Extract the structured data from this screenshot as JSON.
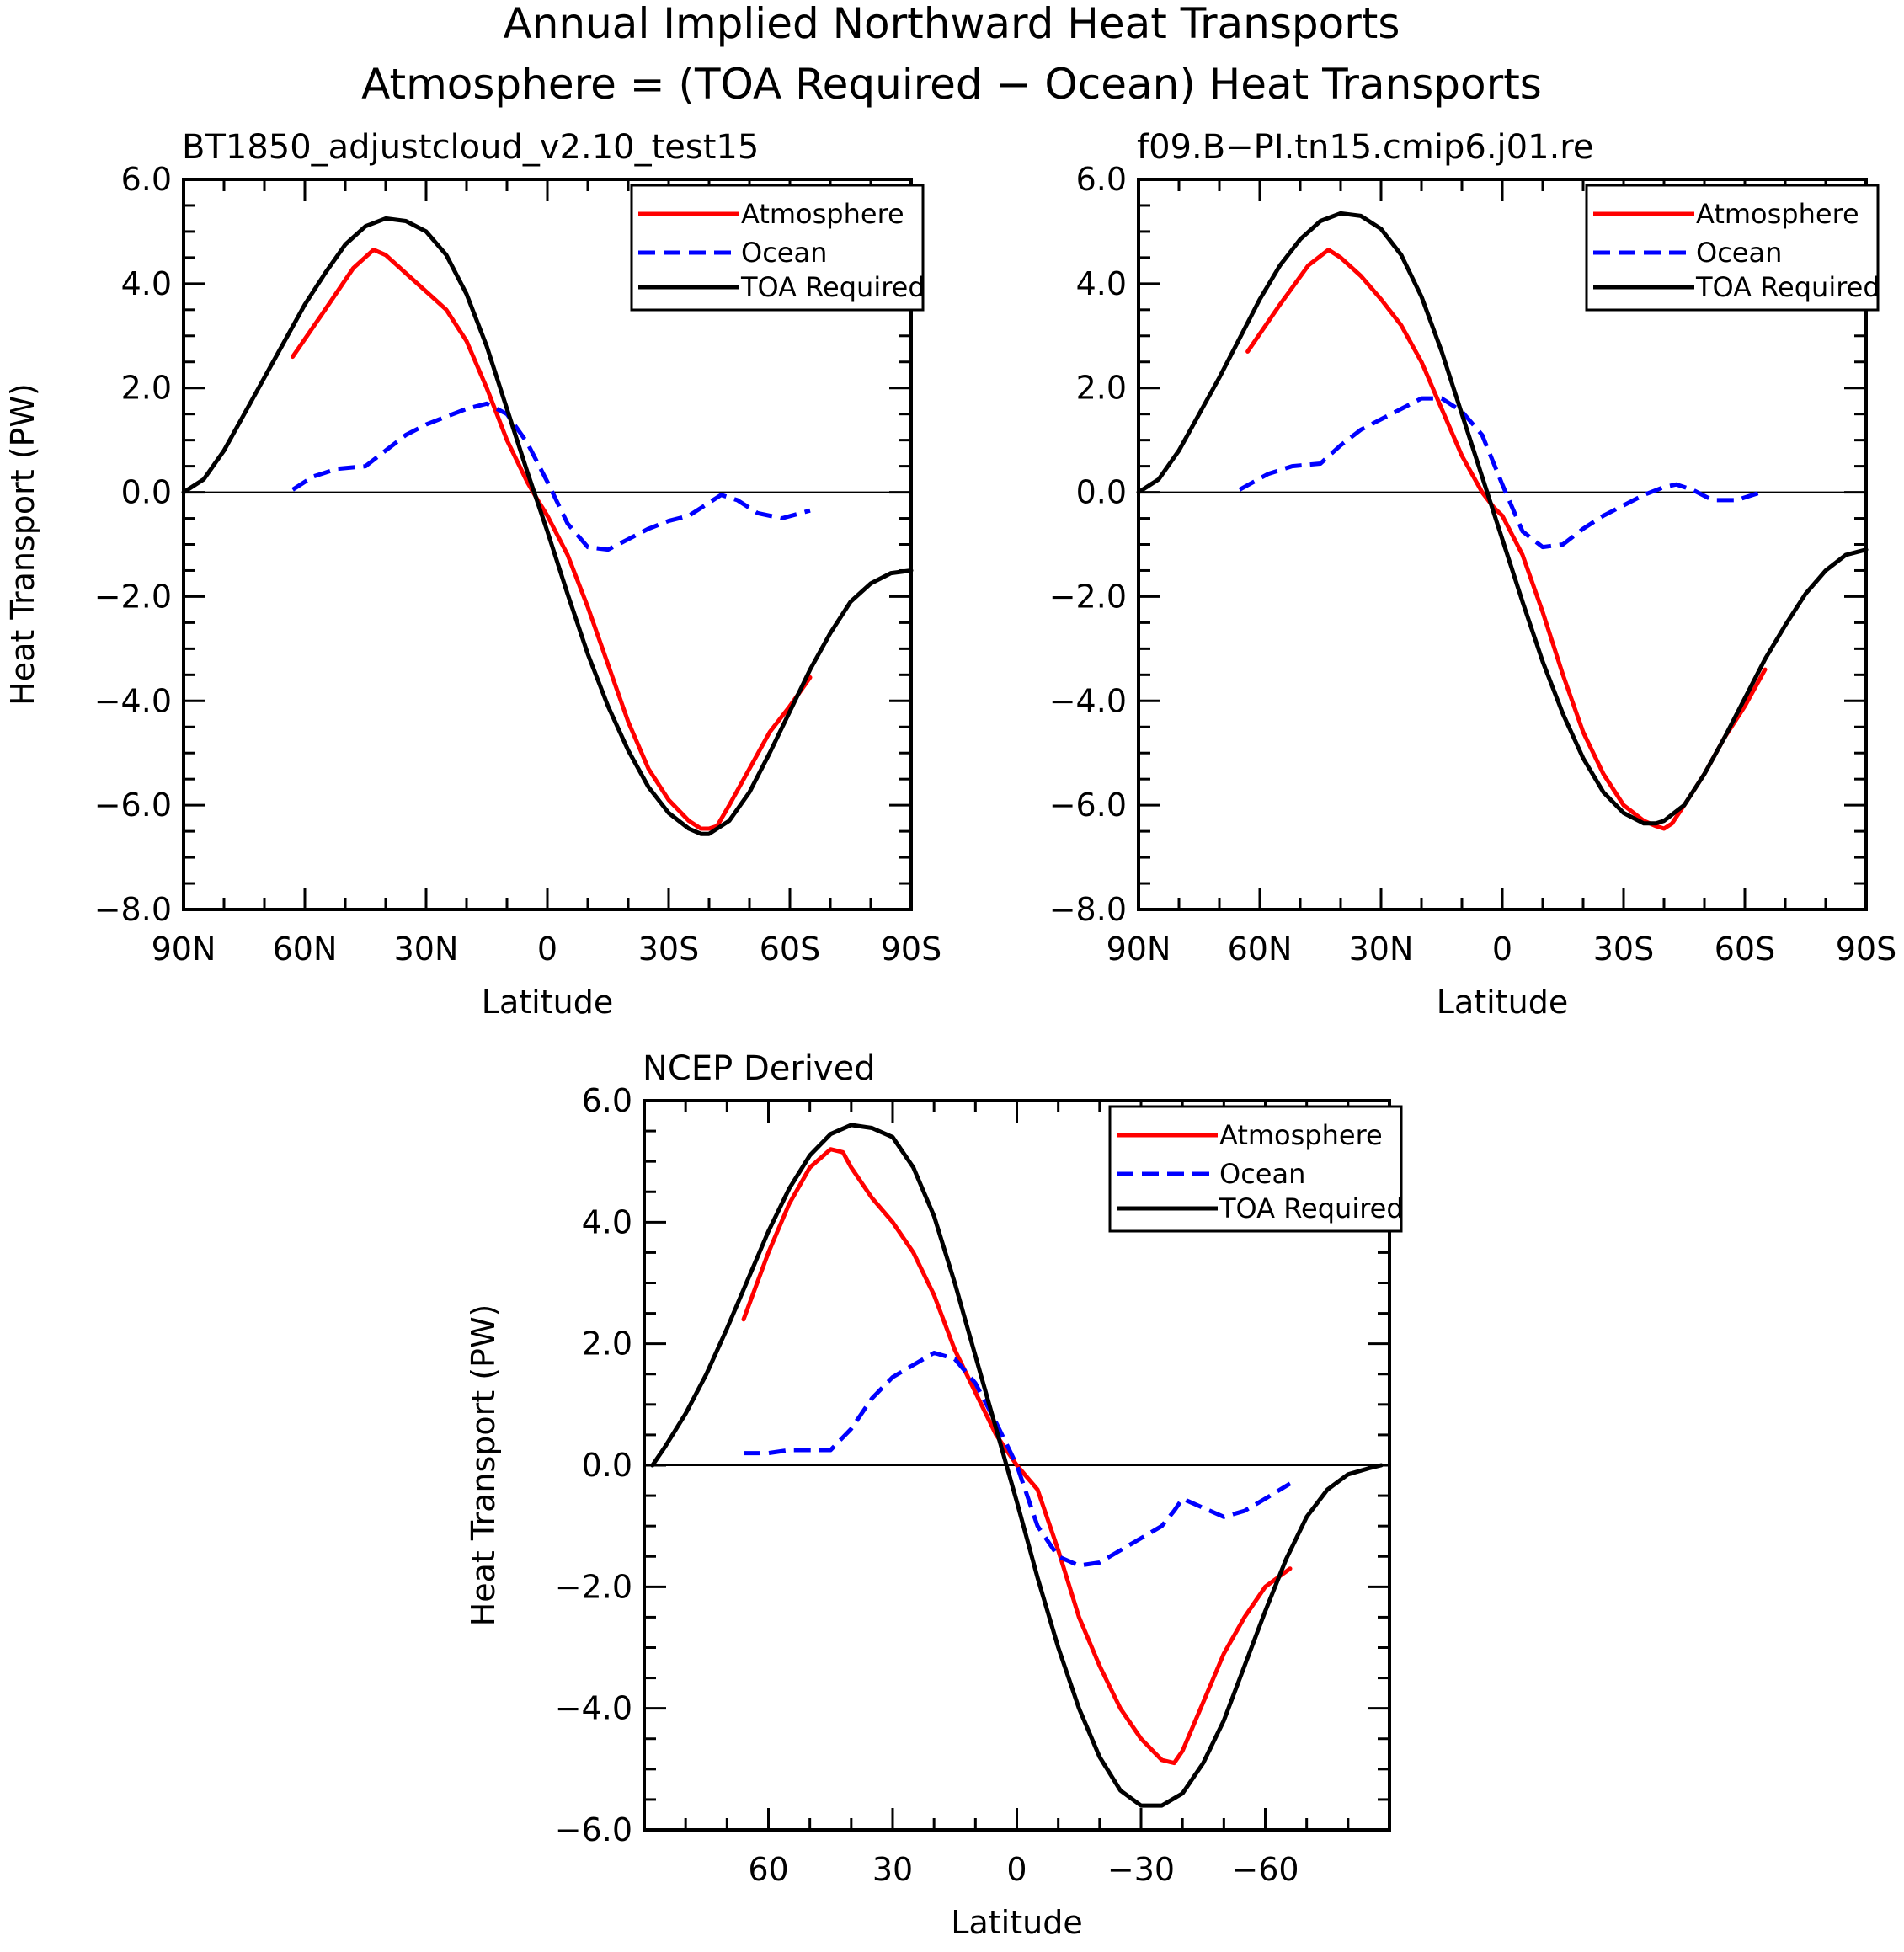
{
  "figure": {
    "title_line1": "Annual Implied Northward Heat Transports",
    "title_line2": "Atmosphere = (TOA Required − Ocean) Heat Transports"
  },
  "legend": {
    "atmosphere": "Atmosphere",
    "ocean": "Ocean",
    "toa": "TOA Required"
  },
  "colors": {
    "atmosphere": "#ff0000",
    "ocean": "#0000ff",
    "toa": "#000000"
  },
  "chart_data": [
    {
      "type": "line",
      "title": "BT1850_adjustcloud_v2.10_test15",
      "xlabel": "Latitude",
      "ylabel": "Heat Transport (PW)",
      "xlim": [
        90,
        -90
      ],
      "ylim": [
        -8,
        6
      ],
      "yticks": [
        6,
        4,
        2,
        0,
        -2,
        -4,
        -6,
        -8
      ],
      "ytick_labels": [
        "6.0",
        "4.0",
        "2.0",
        "0.0",
        "−2.0",
        "−4.0",
        "−6.0",
        "−8.0"
      ],
      "xticks": [
        90,
        60,
        30,
        0,
        -30,
        -60,
        -90
      ],
      "xtick_labels": [
        "90N",
        "60N",
        "30N",
        "0",
        "30S",
        "60S",
        "90S"
      ],
      "legend_position": "top-right",
      "series": [
        {
          "name": "Atmosphere",
          "key": "atmosphere",
          "style": "solid",
          "x": [
            63,
            55,
            48,
            43,
            40,
            35,
            30,
            25,
            20,
            15,
            10,
            5,
            2,
            0,
            -5,
            -10,
            -15,
            -20,
            -25,
            -30,
            -35,
            -38,
            -40,
            -42,
            -45,
            -50,
            -55,
            -60,
            -65
          ],
          "y": [
            2.6,
            3.5,
            4.3,
            4.65,
            4.55,
            4.2,
            3.85,
            3.5,
            2.9,
            2.0,
            1.0,
            0.2,
            -0.2,
            -0.45,
            -1.2,
            -2.2,
            -3.3,
            -4.4,
            -5.3,
            -5.9,
            -6.3,
            -6.45,
            -6.45,
            -6.4,
            -6.0,
            -5.3,
            -4.6,
            -4.1,
            -3.55
          ],
          "show_in_legend": true
        },
        {
          "name": "Ocean",
          "key": "ocean",
          "style": "dashed",
          "x": [
            63,
            58,
            52,
            45,
            40,
            35,
            30,
            25,
            20,
            15,
            10,
            5,
            0,
            -5,
            -10,
            -15,
            -20,
            -25,
            -30,
            -35,
            -40,
            -43,
            -47,
            -52,
            -58,
            -65
          ],
          "y": [
            0.05,
            0.3,
            0.45,
            0.5,
            0.8,
            1.1,
            1.3,
            1.45,
            1.6,
            1.7,
            1.5,
            0.95,
            0.2,
            -0.6,
            -1.05,
            -1.1,
            -0.9,
            -0.7,
            -0.55,
            -0.45,
            -0.2,
            -0.05,
            -0.15,
            -0.4,
            -0.5,
            -0.35
          ],
          "show_in_legend": true
        },
        {
          "name": "TOA Required",
          "key": "toa",
          "style": "solid",
          "x": [
            90,
            85,
            80,
            75,
            70,
            65,
            60,
            55,
            50,
            45,
            40,
            35,
            30,
            25,
            20,
            15,
            10,
            5,
            0,
            -5,
            -10,
            -15,
            -20,
            -25,
            -30,
            -35,
            -38,
            -40,
            -45,
            -50,
            -55,
            -60,
            -65,
            -70,
            -75,
            -80,
            -85,
            -90
          ],
          "y": [
            0.0,
            0.25,
            0.8,
            1.5,
            2.2,
            2.9,
            3.6,
            4.2,
            4.75,
            5.1,
            5.25,
            5.2,
            5.0,
            4.55,
            3.8,
            2.8,
            1.6,
            0.4,
            -0.75,
            -1.95,
            -3.1,
            -4.1,
            -4.95,
            -5.65,
            -6.15,
            -6.45,
            -6.55,
            -6.55,
            -6.3,
            -5.75,
            -5.0,
            -4.2,
            -3.4,
            -2.7,
            -2.1,
            -1.75,
            -1.55,
            -1.5
          ],
          "show_in_legend": true
        }
      ]
    },
    {
      "type": "line",
      "title": "f09.B−PI.tn15.cmip6.j01.re",
      "xlabel": "Latitude",
      "ylabel": "",
      "xlim": [
        90,
        -90
      ],
      "ylim": [
        -8,
        6
      ],
      "yticks": [
        6,
        4,
        2,
        0,
        -2,
        -4,
        -6,
        -8
      ],
      "ytick_labels": [
        "6.0",
        "4.0",
        "2.0",
        "0.0",
        "−2.0",
        "−4.0",
        "−6.0",
        "−8.0"
      ],
      "xticks": [
        90,
        60,
        30,
        0,
        -30,
        -60,
        -90
      ],
      "xtick_labels": [
        "90N",
        "60N",
        "30N",
        "0",
        "30S",
        "60S",
        "90S"
      ],
      "legend_position": "top-right",
      "series": [
        {
          "name": "Atmosphere",
          "key": "atmosphere",
          "style": "solid",
          "x": [
            63,
            55,
            48,
            43,
            40,
            35,
            30,
            25,
            20,
            15,
            10,
            5,
            2,
            0,
            -5,
            -10,
            -15,
            -20,
            -25,
            -30,
            -35,
            -38,
            -40,
            -42,
            -45,
            -50,
            -55,
            -60,
            -65
          ],
          "y": [
            2.7,
            3.6,
            4.35,
            4.65,
            4.5,
            4.15,
            3.7,
            3.2,
            2.5,
            1.6,
            0.7,
            0.0,
            -0.3,
            -0.45,
            -1.2,
            -2.3,
            -3.5,
            -4.6,
            -5.4,
            -6.0,
            -6.3,
            -6.4,
            -6.45,
            -6.35,
            -6.0,
            -5.4,
            -4.7,
            -4.1,
            -3.4
          ],
          "show_in_legend": true
        },
        {
          "name": "Ocean",
          "key": "ocean",
          "style": "dashed",
          "x": [
            65,
            58,
            52,
            45,
            40,
            35,
            30,
            25,
            20,
            15,
            10,
            5,
            0,
            -5,
            -10,
            -15,
            -20,
            -25,
            -30,
            -35,
            -40,
            -43,
            -47,
            -52,
            -58,
            -64
          ],
          "y": [
            0.05,
            0.35,
            0.5,
            0.55,
            0.9,
            1.2,
            1.4,
            1.6,
            1.8,
            1.8,
            1.55,
            1.1,
            0.15,
            -0.75,
            -1.05,
            -1.0,
            -0.7,
            -0.45,
            -0.25,
            -0.05,
            0.1,
            0.15,
            0.05,
            -0.15,
            -0.15,
            0.0
          ],
          "show_in_legend": true
        },
        {
          "name": "TOA Required",
          "key": "toa",
          "style": "solid",
          "x": [
            90,
            85,
            80,
            75,
            70,
            65,
            60,
            55,
            50,
            45,
            40,
            35,
            30,
            25,
            20,
            15,
            10,
            5,
            0,
            -5,
            -10,
            -15,
            -20,
            -25,
            -30,
            -35,
            -38,
            -40,
            -45,
            -50,
            -55,
            -60,
            -65,
            -70,
            -75,
            -80,
            -85,
            -90
          ],
          "y": [
            0.0,
            0.25,
            0.8,
            1.5,
            2.2,
            2.95,
            3.7,
            4.35,
            4.85,
            5.2,
            5.35,
            5.3,
            5.05,
            4.55,
            3.75,
            2.7,
            1.5,
            0.3,
            -0.9,
            -2.1,
            -3.25,
            -4.25,
            -5.1,
            -5.75,
            -6.15,
            -6.35,
            -6.35,
            -6.3,
            -6.0,
            -5.4,
            -4.7,
            -3.95,
            -3.2,
            -2.55,
            -1.95,
            -1.5,
            -1.2,
            -1.1
          ],
          "show_in_legend": true
        }
      ]
    },
    {
      "type": "line",
      "title": "NCEP Derived",
      "xlabel": "Latitude",
      "ylabel": "Heat Transport (PW)",
      "xlim": [
        90,
        -90
      ],
      "ylim": [
        -6,
        6
      ],
      "yticks": [
        6,
        4,
        2,
        0,
        -2,
        -4,
        -6
      ],
      "ytick_labels": [
        "6.0",
        "4.0",
        "2.0",
        "0.0",
        "−2.0",
        "−4.0",
        "−6.0"
      ],
      "xticks": [
        60,
        30,
        0,
        -30,
        -60
      ],
      "xtick_labels": [
        "60",
        "30",
        "0",
        "−30",
        "−60"
      ],
      "legend_position": "top-right",
      "series": [
        {
          "name": "Atmosphere",
          "key": "atmosphere",
          "style": "solid",
          "x": [
            66,
            60,
            55,
            50,
            45,
            42,
            40,
            35,
            30,
            25,
            20,
            15,
            10,
            5,
            0,
            -5,
            -10,
            -15,
            -20,
            -25,
            -30,
            -35,
            -38,
            -40,
            -45,
            -50,
            -55,
            -60,
            -66
          ],
          "y": [
            2.4,
            3.5,
            4.3,
            4.9,
            5.2,
            5.15,
            4.9,
            4.4,
            4.0,
            3.5,
            2.8,
            1.9,
            1.2,
            0.5,
            0.0,
            -0.4,
            -1.4,
            -2.5,
            -3.3,
            -4.0,
            -4.5,
            -4.85,
            -4.9,
            -4.7,
            -3.9,
            -3.1,
            -2.5,
            -2.0,
            -1.7
          ],
          "show_in_legend": true
        },
        {
          "name": "Ocean",
          "key": "ocean",
          "style": "dashed",
          "x": [
            66,
            60,
            55,
            50,
            45,
            40,
            35,
            30,
            25,
            20,
            15,
            10,
            5,
            0,
            -5,
            -10,
            -15,
            -20,
            -25,
            -30,
            -35,
            -38,
            -40,
            -45,
            -50,
            -55,
            -60,
            -66
          ],
          "y": [
            0.2,
            0.2,
            0.25,
            0.25,
            0.25,
            0.6,
            1.1,
            1.45,
            1.65,
            1.85,
            1.75,
            1.35,
            0.7,
            0.0,
            -1.0,
            -1.5,
            -1.65,
            -1.6,
            -1.4,
            -1.2,
            -1.0,
            -0.75,
            -0.55,
            -0.7,
            -0.85,
            -0.75,
            -0.55,
            -0.3
          ],
          "show_in_legend": true
        },
        {
          "name": "TOA Required",
          "key": "toa",
          "style": "solid",
          "x": [
            88,
            85,
            80,
            75,
            70,
            65,
            60,
            55,
            50,
            45,
            40,
            35,
            30,
            25,
            20,
            15,
            10,
            5,
            0,
            -5,
            -10,
            -15,
            -20,
            -25,
            -30,
            -35,
            -40,
            -45,
            -50,
            -55,
            -60,
            -65,
            -70,
            -75,
            -80,
            -85,
            -88
          ],
          "y": [
            0.0,
            0.3,
            0.85,
            1.5,
            2.25,
            3.05,
            3.85,
            4.55,
            5.1,
            5.45,
            5.6,
            5.55,
            5.4,
            4.9,
            4.1,
            3.0,
            1.8,
            0.6,
            -0.6,
            -1.85,
            -3.0,
            -4.0,
            -4.8,
            -5.35,
            -5.6,
            -5.6,
            -5.4,
            -4.9,
            -4.2,
            -3.3,
            -2.4,
            -1.55,
            -0.85,
            -0.4,
            -0.15,
            -0.05,
            0.0
          ],
          "show_in_legend": true
        }
      ]
    }
  ]
}
